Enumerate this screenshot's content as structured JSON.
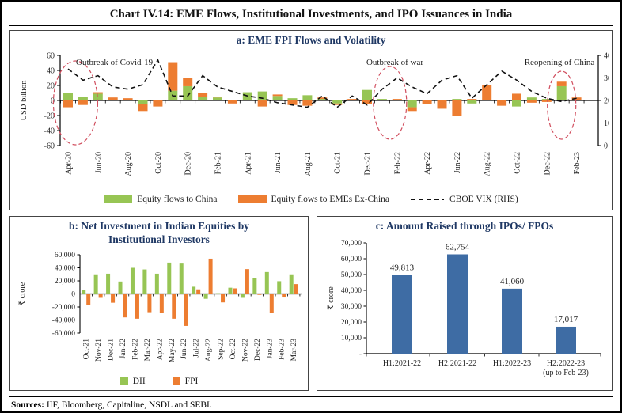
{
  "figure": {
    "title": "Chart IV.14: EME Flows, Institutional Investments, and IPO Issuances in India",
    "sources_label": "Sources:",
    "sources_text": " IIF, Bloomberg, Capitaline, NSDL and SEBI."
  },
  "colors": {
    "china_green": "#97C554",
    "ex_china_orange": "#ED7D31",
    "ipo_blue": "#3E6CA4",
    "vix_line": "#111111",
    "annotation_red": "#D14F5F",
    "panel_title_navy": "#1F3864",
    "axis_text": "#222222"
  },
  "chart_data": [
    {
      "id": "a",
      "type": "bar",
      "subtype": "stacked bars with secondary-axis dashed line",
      "title": "a: EME FPI Flows and Volatility",
      "ylabel": "USD billion",
      "ylim": [
        -60,
        60
      ],
      "yticks": [
        60,
        40,
        20,
        0,
        -20,
        -40,
        -60
      ],
      "y2lim": [
        0,
        40
      ],
      "y2ticks": [
        40,
        30,
        20,
        10,
        0
      ],
      "grid": false,
      "legend_position": "bottom",
      "categories": [
        "Apr-20",
        "May-20",
        "Jun-20",
        "Jul-20",
        "Aug-20",
        "Sep-20",
        "Oct-20",
        "Nov-20",
        "Dec-20",
        "Jan-21",
        "Feb-21",
        "Mar-21",
        "Apr-21",
        "May-21",
        "Jun-21",
        "Jul-21",
        "Aug-21",
        "Sep-21",
        "Oct-21",
        "Nov-21",
        "Dec-21",
        "Jan-22",
        "Feb-22",
        "Mar-22",
        "Apr-22",
        "May-22",
        "Jun-22",
        "Jul-22",
        "Aug-22",
        "Sep-22",
        "Oct-22",
        "Nov-22",
        "Dec-22",
        "Jan-23",
        "Feb-23"
      ],
      "xtick_every": 2,
      "series": [
        {
          "name": "Equity flows to China",
          "color_key": "china_green",
          "values": [
            10,
            5,
            9,
            0,
            0,
            -5,
            0,
            13,
            19,
            5,
            4,
            0,
            11,
            12,
            6,
            3,
            7,
            2,
            -4,
            0,
            14,
            2,
            0,
            -9,
            0,
            0,
            2,
            -4,
            0,
            0,
            -8,
            4,
            2,
            19,
            1
          ]
        },
        {
          "name": "Equity flows to EMEs Ex-China",
          "color_key": "ex_china_orange",
          "values": [
            -9,
            -6,
            2,
            4,
            3,
            -9,
            -8,
            38,
            11,
            5,
            1,
            -4,
            0,
            -8,
            2,
            -6,
            -7,
            2,
            -2,
            2,
            -5,
            0,
            2,
            -5,
            -5,
            -11,
            -20,
            2,
            20,
            -7,
            9,
            -3,
            -2,
            6,
            3
          ]
        }
      ],
      "line_series": {
        "name": "CBOE VIX (RHS)",
        "axis": "right",
        "values": [
          34,
          29,
          31,
          26,
          25,
          27,
          38,
          22,
          22,
          31,
          26,
          24,
          22,
          21,
          19,
          18,
          17,
          22,
          17,
          22,
          18,
          25,
          30,
          26,
          23,
          29,
          31,
          21,
          27,
          33,
          29,
          24,
          21,
          19.5,
          21
        ]
      },
      "annotations": [
        {
          "text": "Outbreak of Covid-19",
          "month": "Apr-20"
        },
        {
          "text": "Outbreak of war",
          "month": "Feb-22"
        },
        {
          "text": "Reopening of China",
          "month": "Jan-23"
        }
      ]
    },
    {
      "id": "b",
      "type": "bar",
      "subtype": "grouped bars",
      "title_line1": "b: Net Investment in Indian Equities by",
      "title_line2": "Institutional Investors",
      "ylabel": "₹ crore",
      "ylim": [
        -60000,
        60000
      ],
      "ytick_labels": [
        "60,000",
        "40,000",
        "20,000",
        "0",
        "-20,000",
        "-40,000",
        "-60,000"
      ],
      "yticks": [
        60000,
        40000,
        20000,
        0,
        -20000,
        -40000,
        -60000
      ],
      "grid": false,
      "legend_position": "bottom",
      "categories": [
        "Oct-21",
        "Nov-21",
        "Dec-21",
        "Jan-22",
        "Feb-22",
        "Mar-22",
        "Apr-22",
        "May-22",
        "Jun-22",
        "Jul-22",
        "Aug-22",
        "Sep-22",
        "Oct-22",
        "Nov-22",
        "Dec-22",
        "Jan-23",
        "Feb-23",
        "Mar-23"
      ],
      "series": [
        {
          "name": "DII",
          "color_key": "china_green",
          "values": [
            6000,
            30000,
            31000,
            19000,
            40000,
            37500,
            31000,
            48000,
            46500,
            11000,
            -7500,
            1000,
            9500,
            -6000,
            24000,
            33500,
            19500,
            30000
          ]
        },
        {
          "name": "FPI",
          "color_key": "ex_china_orange",
          "values": [
            -17000,
            -6000,
            -13500,
            -36000,
            -38000,
            -28000,
            -28500,
            -38000,
            -49000,
            7000,
            54000,
            -13000,
            8500,
            38000,
            -1500,
            -29000,
            -5500,
            15000
          ]
        }
      ]
    },
    {
      "id": "c",
      "type": "bar",
      "title": "c: Amount Raised through IPOs/ FPOs",
      "ylabel": "₹ crore",
      "ylim": [
        0,
        70000
      ],
      "ytick_labels": [
        "70,000",
        "60,000",
        "50,000",
        "40,000",
        "30,000",
        "20,000",
        "10,000",
        "-"
      ],
      "yticks": [
        70000,
        60000,
        50000,
        40000,
        30000,
        20000,
        10000,
        0
      ],
      "grid": false,
      "categories": [
        "H1:2021-22",
        "H2:2021-22",
        "H1:2022-23",
        "H2:2022-23"
      ],
      "category_note": {
        "index": 3,
        "text": "(up to Feb-23)"
      },
      "values": [
        49813,
        62754,
        41060,
        17017
      ],
      "value_labels": [
        "49,813",
        "62,754",
        "41,060",
        "17,017"
      ],
      "bar_color_key": "ipo_blue"
    }
  ]
}
